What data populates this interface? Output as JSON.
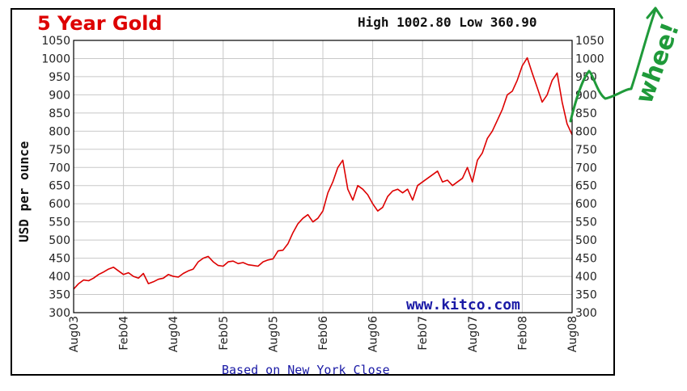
{
  "chart_data": {
    "type": "line",
    "title": "5 Year Gold",
    "high_low": "High 1002.80 Low 360.90",
    "ylabel": "USD per ounce",
    "watermark": "www.kitco.com",
    "footer": "Based on New York Close",
    "annotation": "whee!",
    "ylim": [
      300,
      1050
    ],
    "yticks": [
      "1050",
      "1000",
      "950",
      "900",
      "850",
      "800",
      "750",
      "700",
      "650",
      "600",
      "550",
      "500",
      "450",
      "400",
      "350",
      "300"
    ],
    "xticks": [
      "Aug03",
      "Feb04",
      "Aug04",
      "Feb05",
      "Aug05",
      "Feb06",
      "Aug06",
      "Feb07",
      "Aug07",
      "Feb08",
      "Aug08"
    ],
    "grid": true,
    "colors": {
      "line": "#dd0000",
      "title": "#dd0000",
      "link": "#1a1aa6",
      "annotation": "#1f9a3a",
      "grid": "#c8c8c8"
    },
    "series": [
      {
        "x": [
          0,
          0.05,
          0.1,
          0.15,
          0.2,
          0.25,
          0.3,
          0.35,
          0.4,
          0.45,
          0.5,
          0.55,
          0.6,
          0.65,
          0.7,
          0.75,
          0.8,
          0.85,
          0.9,
          0.95,
          1.0,
          1.05,
          1.1,
          1.15,
          1.2,
          1.25,
          1.3,
          1.35,
          1.4,
          1.45,
          1.5,
          1.55,
          1.6,
          1.65,
          1.7,
          1.75,
          1.8,
          1.85,
          1.9,
          1.95,
          2.0,
          2.05,
          2.1,
          2.15,
          2.2,
          2.25,
          2.3,
          2.35,
          2.4,
          2.45,
          2.5,
          2.55,
          2.6,
          2.65,
          2.7,
          2.75,
          2.8,
          2.85,
          2.9,
          2.95,
          3.0,
          3.05,
          3.1,
          3.15,
          3.2,
          3.25,
          3.3,
          3.35,
          3.4,
          3.45,
          3.5,
          3.55,
          3.6,
          3.65,
          3.7,
          3.75,
          3.8,
          3.85,
          3.9,
          3.95,
          4.0,
          4.05,
          4.1,
          4.15,
          4.2,
          4.25,
          4.3,
          4.35,
          4.4,
          4.45,
          4.5,
          4.55,
          4.6,
          4.65,
          4.7,
          4.75,
          4.8,
          4.85,
          4.9,
          4.95,
          5.0
        ],
        "values": [
          365,
          380,
          390,
          388,
          395,
          405,
          412,
          420,
          425,
          415,
          405,
          410,
          400,
          395,
          408,
          380,
          385,
          392,
          395,
          405,
          400,
          398,
          408,
          415,
          420,
          440,
          450,
          455,
          440,
          430,
          428,
          440,
          442,
          435,
          438,
          432,
          430,
          428,
          440,
          445,
          448,
          470,
          472,
          490,
          520,
          545,
          560,
          570,
          550,
          560,
          580,
          630,
          660,
          700,
          720,
          640,
          610,
          650,
          640,
          625,
          600,
          580,
          590,
          620,
          635,
          640,
          630,
          640,
          610,
          650,
          660,
          670,
          680,
          690,
          660,
          665,
          650,
          660,
          670,
          700,
          660,
          720,
          740,
          780,
          800,
          830,
          860,
          900,
          910,
          940,
          980,
          1002,
          960,
          920,
          880,
          900,
          940,
          960,
          880,
          820,
          790
        ]
      }
    ]
  }
}
